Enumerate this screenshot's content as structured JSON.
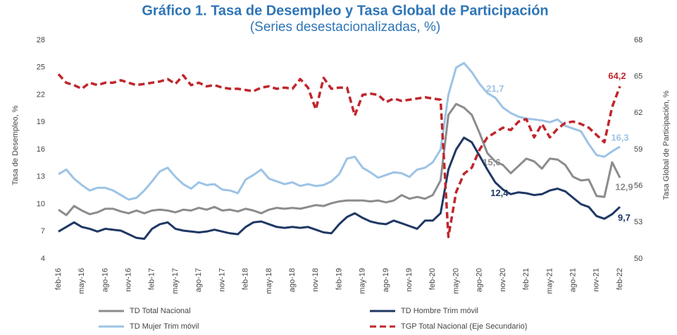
{
  "chart_data": {
    "type": "line",
    "title": "Gráfico 1. Tasa de Desempleo y Tasa Global de Participación",
    "subtitle": "(Series desestacionalizadas, %)",
    "y_label": "Tasa de Desempleo, %",
    "y2_label": "Tasa Global de Participación, %",
    "categories": [
      "feb-16",
      null,
      null,
      "may-16",
      null,
      null,
      "ago-16",
      null,
      null,
      "nov-16",
      null,
      null,
      "feb-17",
      null,
      null,
      "may-17",
      null,
      null,
      "ago-17",
      null,
      null,
      "nov-17",
      null,
      null,
      "feb-18",
      null,
      null,
      "may-18",
      null,
      null,
      "ago-18",
      null,
      null,
      "nov-18",
      null,
      null,
      "feb-19",
      null,
      null,
      "may-19",
      null,
      null,
      "ago-19",
      null,
      null,
      "nov-19",
      null,
      null,
      "feb-20",
      null,
      null,
      "may-20",
      null,
      null,
      "ago-20",
      null,
      null,
      "nov-20",
      null,
      null,
      "feb-21",
      null,
      null,
      "may-21",
      null,
      null,
      "ago-21",
      null,
      null,
      "nov-21",
      null,
      null,
      "feb-22"
    ],
    "ylim": [
      4,
      28
    ],
    "yticks": [
      4,
      7,
      10,
      13,
      16,
      19,
      22,
      25,
      28
    ],
    "y2lim": [
      50,
      68
    ],
    "y2ticks": [
      50,
      53,
      56,
      59,
      62,
      65,
      68
    ],
    "series": [
      {
        "name": "TD Total Nacional",
        "color": "#8c8c8c",
        "dashed": false,
        "values": [
          9.4,
          8.8,
          9.8,
          9.3,
          8.9,
          9.1,
          9.5,
          9.5,
          9.2,
          9.0,
          9.3,
          9.0,
          9.3,
          9.4,
          9.3,
          9.1,
          9.4,
          9.3,
          9.6,
          9.4,
          9.7,
          9.3,
          9.4,
          9.2,
          9.5,
          9.3,
          9.0,
          9.4,
          9.6,
          9.5,
          9.6,
          9.5,
          9.7,
          9.9,
          9.8,
          10.1,
          10.3,
          10.4,
          10.4,
          10.4,
          10.3,
          10.4,
          10.2,
          10.4,
          11.0,
          10.6,
          10.8,
          10.6,
          11.0,
          12.6,
          19.8,
          21.0,
          20.6,
          19.8,
          17.8,
          15.6,
          14.7,
          14.3,
          13.4,
          14.2,
          15.0,
          14.7,
          13.9,
          15.0,
          14.9,
          14.3,
          13.0,
          12.6,
          12.7,
          10.9,
          10.8,
          14.6,
          12.9
        ],
        "value_labels": [
          null,
          null,
          null,
          null,
          null,
          null,
          null,
          null,
          null,
          null,
          null,
          null,
          null,
          null,
          null,
          null,
          null,
          null,
          null,
          null,
          null,
          null,
          null,
          null,
          null,
          null,
          null,
          null,
          null,
          null,
          null,
          null,
          null,
          null,
          null,
          null,
          null,
          null,
          null,
          null,
          null,
          null,
          null,
          null,
          null,
          null,
          null,
          null,
          null,
          null,
          null,
          null,
          null,
          null,
          null,
          "15,6",
          null,
          null,
          null,
          null,
          null,
          null,
          null,
          null,
          null,
          null,
          null,
          null,
          null,
          null,
          null,
          null,
          "12,9"
        ]
      },
      {
        "name": "TD Hombre Trim móvil",
        "color": "#1f3864",
        "dashed": false,
        "values": [
          7.0,
          7.5,
          8.0,
          7.5,
          7.3,
          7.0,
          7.3,
          7.2,
          7.1,
          6.7,
          6.3,
          6.2,
          7.3,
          7.8,
          8.0,
          7.3,
          7.1,
          7.0,
          6.9,
          7.0,
          7.2,
          7.0,
          6.8,
          6.7,
          7.5,
          8.0,
          8.1,
          7.8,
          7.5,
          7.4,
          7.5,
          7.4,
          7.5,
          7.2,
          6.9,
          6.8,
          7.8,
          8.6,
          9.0,
          8.5,
          8.1,
          7.9,
          7.8,
          8.2,
          7.9,
          7.6,
          7.3,
          8.2,
          8.2,
          9.0,
          13.8,
          16.0,
          17.3,
          16.8,
          15.3,
          13.8,
          12.4,
          11.6,
          11.1,
          11.3,
          11.2,
          11.0,
          11.1,
          11.5,
          11.7,
          11.4,
          10.7,
          10.0,
          9.7,
          8.7,
          8.4,
          8.9,
          9.7
        ],
        "value_labels": [
          null,
          null,
          null,
          null,
          null,
          null,
          null,
          null,
          null,
          null,
          null,
          null,
          null,
          null,
          null,
          null,
          null,
          null,
          null,
          null,
          null,
          null,
          null,
          null,
          null,
          null,
          null,
          null,
          null,
          null,
          null,
          null,
          null,
          null,
          null,
          null,
          null,
          null,
          null,
          null,
          null,
          null,
          null,
          null,
          null,
          null,
          null,
          null,
          null,
          null,
          null,
          null,
          null,
          null,
          null,
          null,
          "12,4",
          null,
          null,
          null,
          null,
          null,
          null,
          null,
          null,
          null,
          null,
          null,
          null,
          null,
          null,
          null,
          "9,7"
        ]
      },
      {
        "name": "TD Mujer Trim móvil",
        "color": "#9dc3e6",
        "dashed": false,
        "values": [
          13.3,
          13.8,
          12.8,
          12.1,
          11.5,
          11.8,
          11.8,
          11.5,
          11.0,
          10.5,
          10.7,
          11.5,
          12.5,
          13.6,
          14.0,
          13.0,
          12.2,
          11.7,
          12.4,
          12.1,
          12.2,
          11.6,
          11.5,
          11.2,
          12.7,
          13.2,
          13.8,
          12.8,
          12.5,
          12.2,
          12.4,
          12.0,
          12.2,
          12.0,
          12.1,
          12.5,
          13.3,
          15.0,
          15.2,
          14.0,
          13.5,
          12.9,
          13.2,
          13.5,
          13.4,
          13.0,
          13.8,
          14.0,
          14.6,
          16.0,
          22.0,
          25.0,
          25.5,
          24.5,
          23.2,
          22.2,
          21.7,
          20.6,
          20.0,
          19.6,
          19.4,
          19.3,
          19.2,
          19.0,
          19.3,
          18.6,
          18.3,
          18.0,
          16.6,
          15.4,
          15.2,
          15.8,
          16.3
        ],
        "value_labels": [
          null,
          null,
          null,
          null,
          null,
          null,
          null,
          null,
          null,
          null,
          null,
          null,
          null,
          null,
          null,
          null,
          null,
          null,
          null,
          null,
          null,
          null,
          null,
          null,
          null,
          null,
          null,
          null,
          null,
          null,
          null,
          null,
          null,
          null,
          null,
          null,
          null,
          null,
          null,
          null,
          null,
          null,
          null,
          null,
          null,
          null,
          null,
          null,
          null,
          null,
          null,
          null,
          null,
          null,
          null,
          null,
          "21,7",
          null,
          null,
          null,
          null,
          null,
          null,
          null,
          null,
          null,
          null,
          null,
          null,
          null,
          null,
          null,
          "16,3"
        ]
      },
      {
        "name": "TGP Total Nacional (Eje Secundario)",
        "color": "#c0262d",
        "dashed": true,
        "axis": "y2",
        "values": [
          65.2,
          64.5,
          64.3,
          64.0,
          64.5,
          64.3,
          64.5,
          64.5,
          64.7,
          64.5,
          64.3,
          64.4,
          64.5,
          64.6,
          64.8,
          64.4,
          65.1,
          64.3,
          64.5,
          64.2,
          64.3,
          64.1,
          64.0,
          64.0,
          63.9,
          63.8,
          64.1,
          64.2,
          64.0,
          64.1,
          64.0,
          64.8,
          64.1,
          62.3,
          64.9,
          64.0,
          64.1,
          64.1,
          61.8,
          63.5,
          63.6,
          63.5,
          62.9,
          63.2,
          63.0,
          63.1,
          63.2,
          63.3,
          63.2,
          63.1,
          51.8,
          55.5,
          57.0,
          57.5,
          59.0,
          60.0,
          60.4,
          60.8,
          60.6,
          61.3,
          61.5,
          60.0,
          61.1,
          60.0,
          60.7,
          61.2,
          61.3,
          61.1,
          60.8,
          60.2,
          59.6,
          62.5,
          64.2
        ],
        "value_labels": [
          null,
          null,
          null,
          null,
          null,
          null,
          null,
          null,
          null,
          null,
          null,
          null,
          null,
          null,
          null,
          null,
          null,
          null,
          null,
          null,
          null,
          null,
          null,
          null,
          null,
          null,
          null,
          null,
          null,
          null,
          null,
          null,
          null,
          null,
          null,
          null,
          null,
          null,
          null,
          null,
          null,
          null,
          null,
          null,
          null,
          null,
          null,
          null,
          null,
          null,
          null,
          null,
          null,
          null,
          null,
          null,
          null,
          null,
          null,
          null,
          null,
          null,
          null,
          null,
          null,
          null,
          null,
          null,
          null,
          null,
          null,
          null,
          "64,2"
        ]
      }
    ]
  }
}
